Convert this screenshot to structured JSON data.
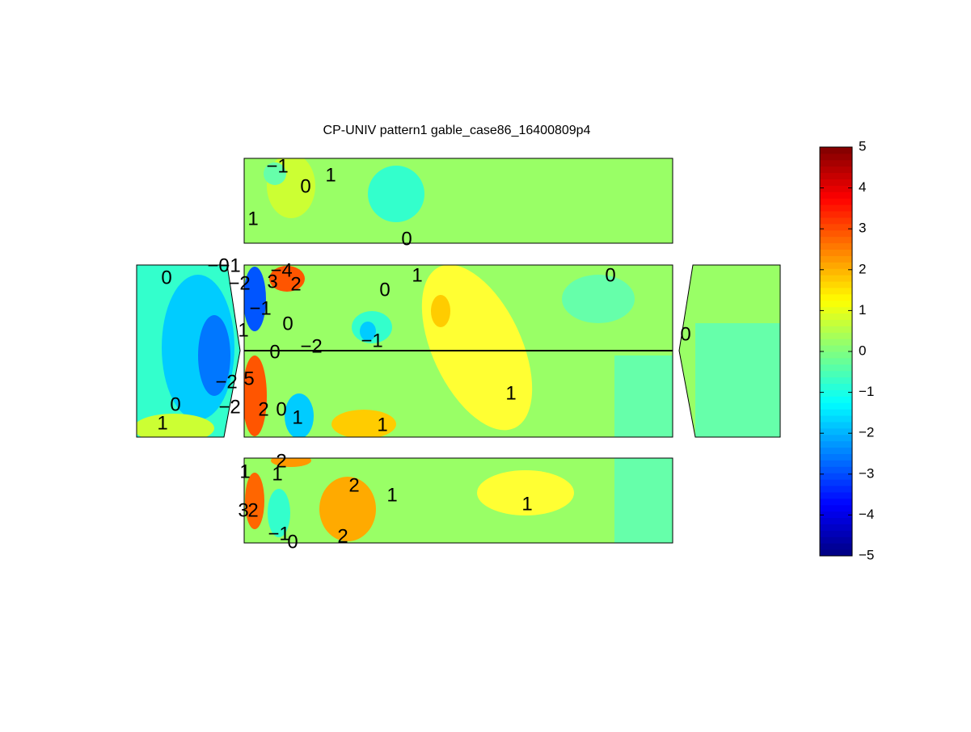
{
  "chart_data": {
    "type": "contour",
    "title": "CP-UNIV pattern1 gable_case86_16400809p4",
    "colormap": "jet",
    "clim": [
      -5,
      5
    ],
    "cticks": [
      {
        "value": -5,
        "label": "−5"
      },
      {
        "value": -4,
        "label": "−4"
      },
      {
        "value": -3,
        "label": "−3"
      },
      {
        "value": -2,
        "label": "−2"
      },
      {
        "value": -1,
        "label": "−1"
      },
      0,
      1,
      2,
      3,
      4,
      5
    ],
    "contour_labels": [
      "−1",
      "0",
      "1",
      "1",
      "0",
      "0",
      "−0",
      "−1",
      "0",
      "1",
      "0",
      "0",
      "1",
      "0",
      "−2",
      "−1",
      "0",
      "−1",
      "−2",
      "3",
      "2",
      "−4",
      "1",
      "1",
      "−2",
      "−2",
      "0",
      "1",
      "2",
      "0",
      "1",
      "5",
      "1",
      "2",
      "1",
      "2",
      "1",
      "1",
      "3",
      "2",
      "−1",
      "0",
      "2"
    ]
  }
}
